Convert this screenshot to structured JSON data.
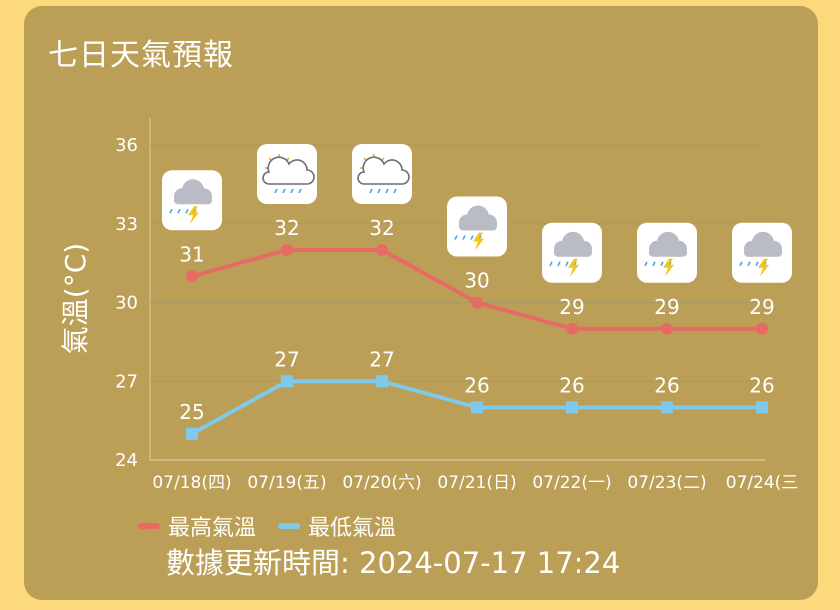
{
  "title": "七日天氣預報",
  "legend": {
    "high_label": "最高氣溫",
    "low_label": "最低氣溫"
  },
  "footer": {
    "update_text": "數據更新時間: 2024-07-17 17:24"
  },
  "colors": {
    "high": "#e86a64",
    "low": "#7ec9ec",
    "background": "#fcd97a",
    "card": "#bc9f56"
  },
  "chart_data": {
    "type": "line",
    "ylabel": "氣溫(°C)",
    "ylim": [
      24,
      36
    ],
    "yticks": [
      24,
      27,
      30,
      33,
      36
    ],
    "grid": true,
    "legend_position": "bottom-left",
    "categories": [
      "07/18(四)",
      "07/19(五)",
      "07/20(六)",
      "07/21(日)",
      "07/22(一)",
      "07/23(二)",
      "07/24(三"
    ],
    "series": [
      {
        "name": "最高氣溫",
        "values": [
          31,
          32,
          32,
          30,
          29,
          29,
          29
        ]
      },
      {
        "name": "最低氣溫",
        "values": [
          25,
          27,
          27,
          26,
          26,
          26,
          26
        ]
      }
    ],
    "weather_icons": [
      "thunder-rain-icon",
      "partly-sunny-rain-icon",
      "partly-sunny-rain-icon",
      "thunder-rain-icon",
      "thunder-rain-icon",
      "thunder-rain-icon",
      "thunder-rain-icon"
    ]
  }
}
